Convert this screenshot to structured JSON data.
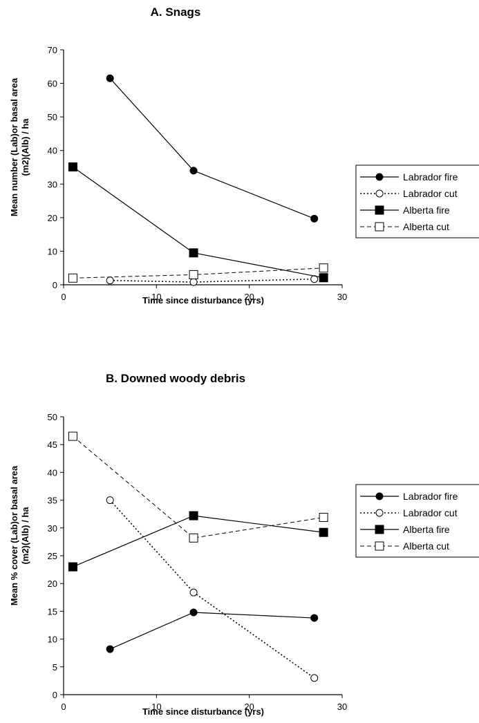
{
  "chart_data": [
    {
      "type": "line",
      "title": "A. Snags",
      "xlabel": "Time since disturbance (yrs)",
      "ylabel_line1": "Mean number (Lab)or basal area",
      "ylabel_line2": "(m2)(Alb) / ha",
      "xlim": [
        0,
        30
      ],
      "ylim": [
        0,
        70
      ],
      "xticks": [
        0,
        10,
        20,
        30
      ],
      "yticks": [
        0,
        10,
        20,
        30,
        40,
        50,
        60,
        70
      ],
      "grid": false,
      "legend_position": "right",
      "series": [
        {
          "name": "Labrador fire",
          "marker": "circle-filled",
          "line": "solid",
          "x": [
            5,
            14,
            27
          ],
          "y": [
            61.5,
            34,
            19.7
          ]
        },
        {
          "name": "Labrador cut",
          "marker": "circle-open",
          "line": "dotted",
          "x": [
            5,
            14,
            27
          ],
          "y": [
            1.3,
            0.8,
            1.7
          ]
        },
        {
          "name": "Alberta fire",
          "marker": "square-filled",
          "line": "solid",
          "x": [
            1,
            14,
            28
          ],
          "y": [
            35.1,
            9.5,
            2.1
          ]
        },
        {
          "name": "Alberta cut",
          "marker": "square-open",
          "line": "dashed",
          "x": [
            1,
            14,
            28
          ],
          "y": [
            2.0,
            3.0,
            5.0
          ]
        }
      ]
    },
    {
      "type": "line",
      "title": "B. Downed woody debris",
      "xlabel": "Time since disturbance (yrs)",
      "ylabel_line1": "Mean % cover (Lab)or basal area",
      "ylabel_line2": "(m2)(Alb) / ha",
      "xlim": [
        0,
        30
      ],
      "ylim": [
        0,
        50
      ],
      "xticks": [
        0,
        10,
        20,
        30
      ],
      "yticks": [
        0,
        5,
        10,
        15,
        20,
        25,
        30,
        35,
        40,
        45,
        50
      ],
      "grid": false,
      "legend_position": "right",
      "series": [
        {
          "name": "Labrador fire",
          "marker": "circle-filled",
          "line": "solid",
          "x": [
            5,
            14,
            27
          ],
          "y": [
            8.2,
            14.8,
            13.8
          ]
        },
        {
          "name": "Labrador cut",
          "marker": "circle-open",
          "line": "dotted",
          "x": [
            5,
            14,
            27
          ],
          "y": [
            35.0,
            18.4,
            3.0
          ]
        },
        {
          "name": "Alberta fire",
          "marker": "square-filled",
          "line": "solid",
          "x": [
            1,
            14,
            28
          ],
          "y": [
            23.0,
            32.2,
            29.2
          ]
        },
        {
          "name": "Alberta cut",
          "marker": "square-open",
          "line": "dashed",
          "x": [
            1,
            14,
            28
          ],
          "y": [
            46.5,
            28.2,
            31.9
          ]
        }
      ]
    }
  ]
}
